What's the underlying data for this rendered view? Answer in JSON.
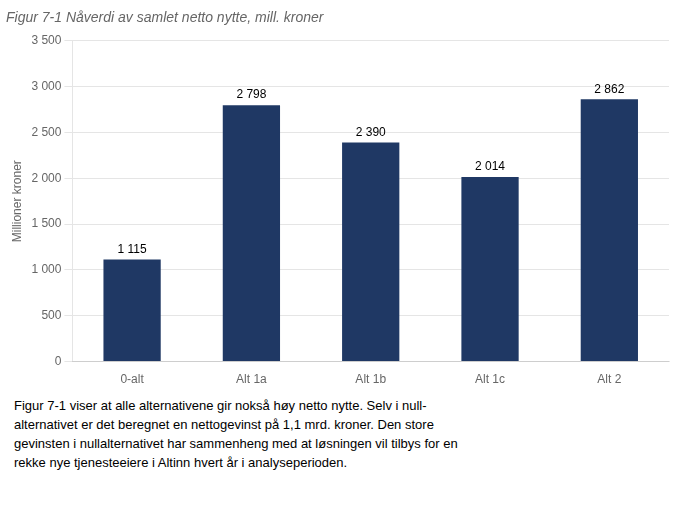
{
  "chart_data": {
    "type": "bar",
    "title": "Figur 7-1 Nåverdi av samlet netto nytte, mill. kroner",
    "categories": [
      "0-alt",
      "Alt 1a",
      "Alt 1b",
      "Alt 1c",
      "Alt 2"
    ],
    "values": [
      1115,
      2798,
      2390,
      2014,
      2862
    ],
    "value_labels": [
      "1 115",
      "2 798",
      "2 390",
      "2 014",
      "2 862"
    ],
    "data_labels": true,
    "color": "#1F3864",
    "ylabel": "Millioner kroner",
    "ylim": [
      0,
      3500
    ],
    "yticks": [
      0,
      500,
      {
        "value": 1000,
        "label": "1 000"
      },
      {
        "value": 1500,
        "label": "1 500"
      },
      {
        "value": 2000,
        "label": "2 000"
      },
      {
        "value": 2500,
        "label": "2 500"
      },
      {
        "value": 3000,
        "label": "3 000"
      },
      {
        "value": 3500,
        "label": "3 500"
      }
    ],
    "grid": true,
    "annotations": [
      "Figur 7-1 viser at alle alternativene gir nokså høy netto nytte. Selv i null-",
      "alternativet er det beregnet en nettogevinst på 1,1 mrd. kroner. Den store",
      "gevinsten i nullalternativet har sammenheng med at løsningen vil tilbys for en",
      "rekke nye tjenesteeiere i Altinn hvert år i analyseperioden."
    ]
  }
}
